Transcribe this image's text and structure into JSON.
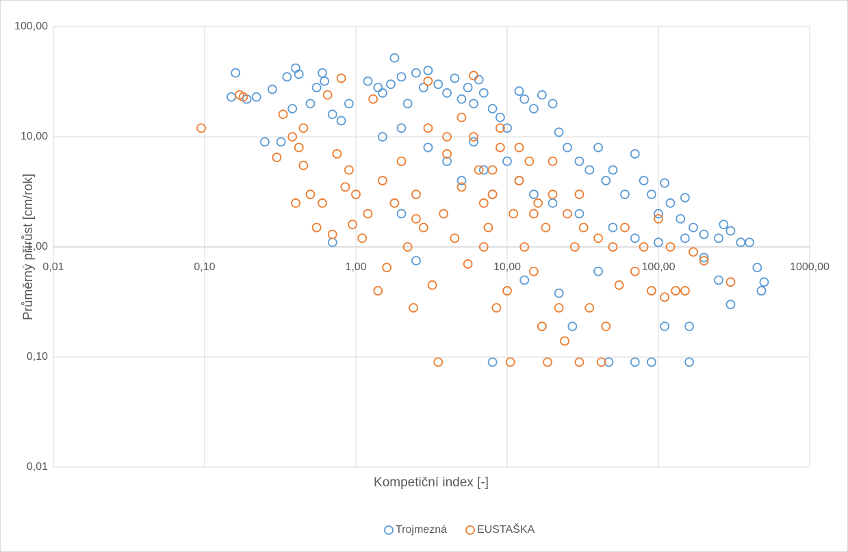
{
  "chart_data": {
    "type": "scatter",
    "x_label": "Kompetiční index [-]",
    "y_label": "Průměrný přírůst [cm/rok]",
    "xscale": "log",
    "yscale": "log",
    "xlim": [
      0.01,
      1000
    ],
    "ylim": [
      0.01,
      100
    ],
    "xaxis_crosses_y": 1,
    "grid": true,
    "legend": "bottom",
    "xticks": [
      {
        "value": 0.01,
        "label": "0,01"
      },
      {
        "value": 0.1,
        "label": "0,10"
      },
      {
        "value": 1,
        "label": "1,00"
      },
      {
        "value": 10,
        "label": "10,00"
      },
      {
        "value": 100,
        "label": "100,00"
      },
      {
        "value": 1000,
        "label": "1000,00"
      }
    ],
    "yticks": [
      {
        "value": 0.01,
        "label": "0,01"
      },
      {
        "value": 0.1,
        "label": "0,10"
      },
      {
        "value": 1,
        "label": "1,00"
      },
      {
        "value": 10,
        "label": "10,00"
      },
      {
        "value": 100,
        "label": "100,00"
      }
    ],
    "series": [
      {
        "name": "Trojmezná",
        "color": "#5b9bd5",
        "x": [
          0.15,
          0.16,
          0.19,
          0.22,
          0.25,
          0.28,
          0.32,
          0.35,
          0.4,
          0.42,
          0.38,
          0.5,
          0.55,
          0.6,
          0.62,
          0.7,
          0.8,
          0.9,
          1.2,
          1.4,
          1.5,
          1.7,
          1.8,
          2,
          2.2,
          2.5,
          2.8,
          3,
          3.5,
          4,
          4.5,
          5,
          5.5,
          6,
          6.5,
          7,
          8,
          9,
          10,
          12,
          13,
          15,
          17,
          20,
          22,
          25,
          30,
          35,
          40,
          45,
          50,
          60,
          70,
          80,
          90,
          100,
          110,
          120,
          140,
          150,
          170,
          200,
          250,
          270,
          300,
          350,
          400,
          450,
          480,
          500,
          1.5,
          2,
          3,
          4,
          5,
          6,
          7,
          8,
          10,
          12,
          15,
          20,
          30,
          50,
          70,
          100,
          150,
          200,
          250,
          300,
          110,
          160,
          160,
          90,
          70,
          47,
          8,
          17,
          27,
          2.5,
          0.7,
          2,
          13,
          22,
          40
        ],
        "values": [
          23,
          38,
          22,
          23,
          9,
          27,
          9,
          35,
          42,
          37,
          18,
          20,
          28,
          38,
          32,
          16,
          14,
          20,
          32,
          28,
          25,
          30,
          52,
          35,
          20,
          38,
          28,
          40,
          30,
          25,
          34,
          22,
          28,
          20,
          33,
          25,
          18,
          15,
          12,
          26,
          22,
          18,
          24,
          20,
          11,
          8,
          6,
          5,
          8,
          4,
          5,
          3,
          7,
          4,
          3,
          2,
          3.8,
          2.5,
          1.8,
          2.8,
          1.5,
          1.3,
          1.2,
          1.6,
          1.4,
          1.1,
          1.1,
          0.65,
          0.4,
          0.48,
          10,
          12,
          8,
          6,
          4,
          9,
          5,
          3,
          6,
          4,
          3,
          2.5,
          2,
          1.5,
          1.2,
          1.1,
          1.2,
          0.8,
          0.5,
          0.3,
          0.19,
          0.09,
          0.19,
          0.09,
          0.09,
          0.09,
          0.09,
          0.19,
          0.19,
          0.75,
          1.1,
          2,
          0.5,
          0.38,
          0.6
        ]
      },
      {
        "name": "EUSTAŠKA",
        "color": "#ed7d31",
        "x": [
          0.095,
          0.17,
          0.18,
          0.3,
          0.33,
          0.38,
          0.4,
          0.42,
          0.45,
          0.45,
          0.5,
          0.55,
          0.6,
          0.65,
          0.7,
          0.75,
          0.8,
          0.85,
          0.9,
          0.95,
          1,
          1.1,
          1.2,
          1.3,
          1.4,
          1.5,
          1.6,
          1.8,
          2,
          2.2,
          2.4,
          2.5,
          2.8,
          3,
          3.2,
          3.5,
          3.8,
          4,
          4.5,
          5,
          5.5,
          6,
          6.5,
          7,
          7.5,
          8,
          8.5,
          9,
          10,
          10.5,
          11,
          12,
          13,
          14,
          15,
          16,
          17,
          18,
          18.5,
          20,
          22,
          24,
          25,
          28,
          30,
          32,
          35,
          40,
          42,
          45,
          50,
          55,
          60,
          70,
          80,
          90,
          100,
          110,
          120,
          130,
          150,
          170,
          200,
          300,
          6,
          9,
          4,
          12,
          3,
          5,
          7,
          20,
          30,
          2.5,
          15,
          8
        ],
        "values": [
          12,
          24,
          23,
          6.5,
          16,
          10,
          2.5,
          8,
          5.5,
          12,
          3,
          1.5,
          2.5,
          24,
          1.3,
          7,
          34,
          3.5,
          5,
          1.6,
          3,
          1.2,
          2,
          22,
          0.4,
          4,
          0.65,
          2.5,
          6,
          1,
          0.28,
          3,
          1.5,
          32,
          0.45,
          0.09,
          2,
          7,
          1.2,
          3.5,
          0.7,
          36,
          5,
          2.5,
          1.5,
          3,
          0.28,
          8,
          0.4,
          0.09,
          2,
          4,
          1,
          6,
          0.6,
          2.5,
          0.19,
          1.5,
          0.09,
          3,
          0.28,
          0.14,
          2,
          1,
          0.09,
          1.5,
          0.28,
          1.2,
          0.09,
          0.19,
          1,
          0.45,
          1.5,
          0.6,
          1,
          0.4,
          1.8,
          0.35,
          1,
          0.4,
          0.4,
          0.9,
          0.75,
          0.48,
          10,
          12,
          10,
          8,
          12,
          15,
          1,
          6,
          3,
          1.8,
          2,
          5
        ]
      }
    ]
  }
}
